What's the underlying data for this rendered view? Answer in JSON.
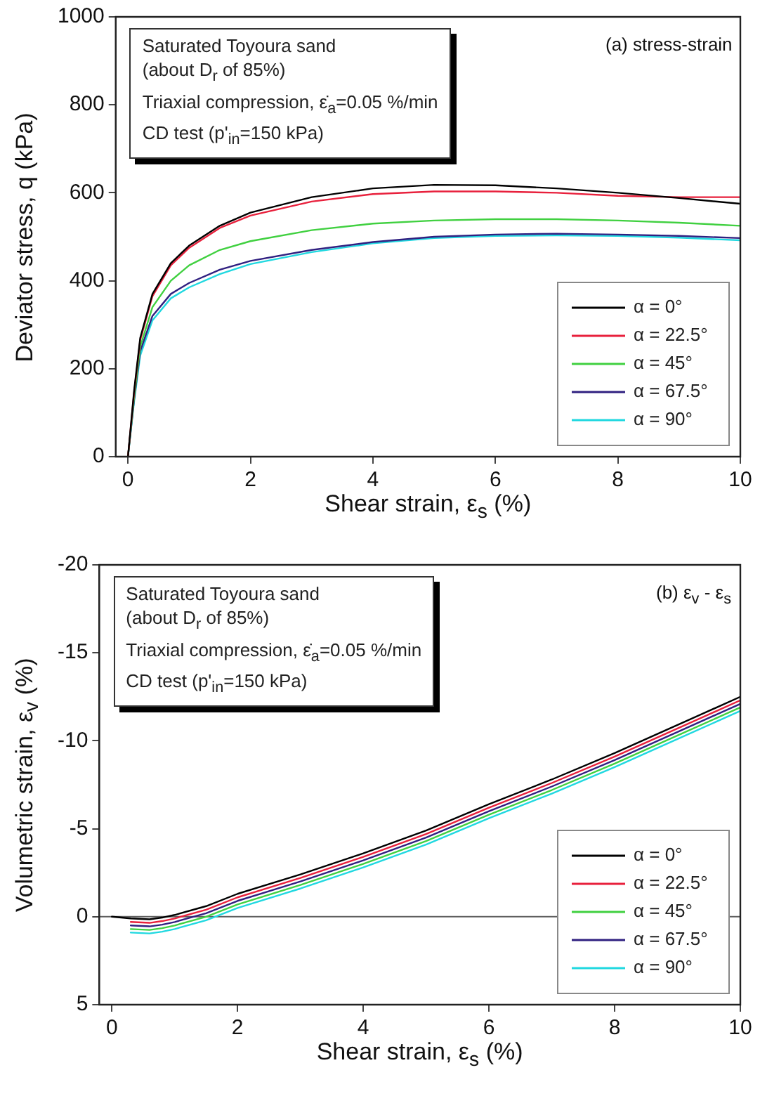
{
  "chart_data": [
    {
      "type": "line",
      "title": "(a) stress-strain",
      "xlabel": "Shear strain,  ε$_{s}$  (%)",
      "ylabel": "Deviator stress,  q  (kPa)",
      "annotations": [
        "Saturated Toyoura sand",
        "(about D$_{r}$ of 85%)",
        "Triaxial compression, ε̇$_{a}$=0.05 %/min",
        "CD test (p'$_{in}$=150 kPa)"
      ],
      "x": [
        0,
        0.1,
        0.2,
        0.4,
        0.7,
        1,
        1.5,
        2,
        3,
        4,
        5,
        6,
        7,
        8,
        9,
        10
      ],
      "series": [
        {
          "name": "α = 0°",
          "color": "#000000",
          "values": [
            0,
            150,
            270,
            370,
            440,
            480,
            525,
            555,
            590,
            610,
            618,
            617,
            610,
            600,
            588,
            575
          ]
        },
        {
          "name": "α = 22.5°",
          "color": "#e8203c",
          "values": [
            0,
            145,
            265,
            365,
            435,
            475,
            520,
            548,
            580,
            597,
            603,
            603,
            600,
            593,
            590,
            590
          ]
        },
        {
          "name": "α = 45°",
          "color": "#40d040",
          "values": [
            0,
            135,
            250,
            340,
            400,
            435,
            470,
            490,
            515,
            530,
            537,
            540,
            540,
            537,
            532,
            525
          ]
        },
        {
          "name": "α = 67.5°",
          "color": "#302080",
          "values": [
            0,
            130,
            240,
            320,
            370,
            395,
            425,
            445,
            470,
            488,
            500,
            505,
            507,
            505,
            502,
            497
          ]
        },
        {
          "name": "α = 90°",
          "color": "#20d8e0",
          "values": [
            0,
            125,
            230,
            310,
            360,
            385,
            415,
            438,
            465,
            485,
            497,
            502,
            503,
            502,
            498,
            492
          ]
        }
      ],
      "xlim": [
        -0.2,
        10
      ],
      "xticks": [
        0,
        2,
        4,
        6,
        8,
        10
      ],
      "ylim": [
        0,
        1000
      ],
      "yticks": [
        0,
        200,
        400,
        600,
        800,
        1000
      ],
      "grid": false,
      "legend": "bottom right",
      "marker": "none",
      "line_style": "solid"
    },
    {
      "type": "line",
      "title": "(b) ε$_{v}$ - ε$_{s}$",
      "xlabel": "Shear strain,  ε$_{s}$  (%)",
      "ylabel": "Volumetric strain,  ε$_{v}$  (%)",
      "annotations": [
        "Saturated Toyoura sand",
        "(about D$_{r}$ of 85%)",
        "Triaxial compression, ε̇$_{a}$=0.05 %/min",
        "CD test (p'$_{in}$=150 kPa)"
      ],
      "x": [
        0,
        0.3,
        0.6,
        0.8,
        1,
        1.5,
        2,
        3,
        4,
        5,
        6,
        7,
        8,
        9,
        10
      ],
      "series": [
        {
          "name": "α = 0°",
          "color": "#000000",
          "values": [
            0,
            0.1,
            0.15,
            0.05,
            -0.1,
            -0.6,
            -1.3,
            -2.4,
            -3.6,
            -4.9,
            -6.4,
            -7.8,
            -9.3,
            -10.9,
            -12.5
          ]
        },
        {
          "name": "α = 22.5°",
          "color": "#e8203c",
          "values": [
            null,
            0.3,
            0.35,
            0.25,
            0.1,
            -0.4,
            -1.1,
            -2.2,
            -3.4,
            -4.7,
            -6.2,
            -7.6,
            -9.1,
            -10.7,
            -12.3
          ]
        },
        {
          "name": "α = 45°",
          "color": "#40d040",
          "values": [
            null,
            0.7,
            0.75,
            0.65,
            0.5,
            0,
            -0.7,
            -1.8,
            -3,
            -4.3,
            -5.8,
            -7.2,
            -8.7,
            -10.3,
            -11.9
          ]
        },
        {
          "name": "α = 67.5°",
          "color": "#302080",
          "values": [
            null,
            0.5,
            0.55,
            0.45,
            0.3,
            -0.2,
            -0.9,
            -2,
            -3.2,
            -4.5,
            -6,
            -7.4,
            -8.9,
            -10.5,
            -12.1
          ]
        },
        {
          "name": "α = 90°",
          "color": "#20d8e0",
          "values": [
            null,
            0.9,
            0.95,
            0.85,
            0.7,
            0.2,
            -0.5,
            -1.6,
            -2.8,
            -4.1,
            -5.6,
            -7,
            -8.5,
            -10.1,
            -11.7
          ]
        }
      ],
      "xlim": [
        -0.2,
        10
      ],
      "xticks": [
        0,
        2,
        4,
        6,
        8,
        10
      ],
      "ylim": [
        5,
        -20
      ],
      "yticks": [
        -20,
        -15,
        -10,
        -5,
        0,
        5
      ],
      "ref_lines": [
        {
          "axis": "y",
          "value": 0,
          "color": "#606060"
        }
      ],
      "grid": false,
      "legend": "bottom right",
      "marker": "none",
      "line_style": "solid"
    }
  ]
}
